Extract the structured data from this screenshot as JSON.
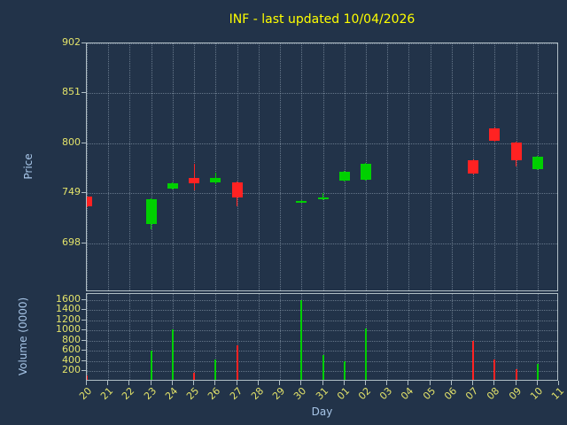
{
  "title": "INF - last updated 10/04/2026",
  "axes": {
    "price_label": "Price",
    "volume_label": "Volume (0000)",
    "x_label": "Day"
  },
  "colors": {
    "background": "#223349",
    "title": "#ffff00",
    "tick_label": "#e3e36a",
    "axis_label": "#a8c6e8",
    "grid": "#9fb0c0",
    "spine": "#b0bec5",
    "up": "#00d000",
    "down": "#ff2222"
  },
  "chart_data": {
    "type": "candlestick_with_volume",
    "title": "INF - last updated 10/04/2026",
    "xlabel": "Day",
    "ylabel_price": "Price",
    "ylabel_volume": "Volume (0000)",
    "grid": "dotted",
    "x_categories": [
      "20",
      "21",
      "22",
      "23",
      "24",
      "25",
      "26",
      "27",
      "28",
      "29",
      "30",
      "31",
      "01",
      "02",
      "03",
      "04",
      "05",
      "06",
      "07",
      "08",
      "09",
      "10",
      "11"
    ],
    "price_axis": {
      "ticks": [
        902,
        851,
        800,
        749,
        698
      ],
      "ylim": [
        648,
        902
      ]
    },
    "volume_axis": {
      "ticks": [
        1600,
        1400,
        1200,
        1000,
        800,
        600,
        400,
        200
      ],
      "ylim": [
        0,
        1720
      ]
    },
    "candles": [
      {
        "day": "20",
        "open": 746,
        "close": 736,
        "high": 746,
        "low": 735
      },
      {
        "day": "23",
        "open": 718,
        "close": 743,
        "high": 744,
        "low": 712
      },
      {
        "day": "24",
        "open": 754,
        "close": 759,
        "high": 760,
        "low": 753
      },
      {
        "day": "25",
        "open": 765,
        "close": 759,
        "high": 779,
        "low": 752
      },
      {
        "day": "26",
        "open": 760,
        "close": 765,
        "high": 770,
        "low": 758
      },
      {
        "day": "27",
        "open": 760,
        "close": 745,
        "high": 761,
        "low": 736
      },
      {
        "day": "30",
        "open": 740,
        "close": 741,
        "high": 742,
        "low": 739
      },
      {
        "day": "31",
        "open": 743,
        "close": 745,
        "high": 749,
        "low": 742
      },
      {
        "day": "01",
        "open": 762,
        "close": 771,
        "high": 772,
        "low": 761
      },
      {
        "day": "02",
        "open": 763,
        "close": 779,
        "high": 780,
        "low": 762
      },
      {
        "day": "07",
        "open": 783,
        "close": 769,
        "high": 784,
        "low": 768
      },
      {
        "day": "08",
        "open": 815,
        "close": 803,
        "high": 816,
        "low": 802
      },
      {
        "day": "09",
        "open": 801,
        "close": 783,
        "high": 802,
        "low": 776
      },
      {
        "day": "10",
        "open": 774,
        "close": 786,
        "high": 787,
        "low": 773
      }
    ],
    "volumes": [
      {
        "day": "20",
        "value": 120,
        "direction": "down"
      },
      {
        "day": "23",
        "value": 600,
        "direction": "up"
      },
      {
        "day": "24",
        "value": 1030,
        "direction": "up"
      },
      {
        "day": "25",
        "value": 180,
        "direction": "down"
      },
      {
        "day": "26",
        "value": 430,
        "direction": "up"
      },
      {
        "day": "27",
        "value": 720,
        "direction": "down"
      },
      {
        "day": "30",
        "value": 1600,
        "direction": "up"
      },
      {
        "day": "31",
        "value": 520,
        "direction": "up"
      },
      {
        "day": "01",
        "value": 400,
        "direction": "up"
      },
      {
        "day": "02",
        "value": 1050,
        "direction": "up"
      },
      {
        "day": "07",
        "value": 800,
        "direction": "down"
      },
      {
        "day": "08",
        "value": 430,
        "direction": "down"
      },
      {
        "day": "09",
        "value": 240,
        "direction": "down"
      },
      {
        "day": "10",
        "value": 350,
        "direction": "up"
      }
    ]
  }
}
